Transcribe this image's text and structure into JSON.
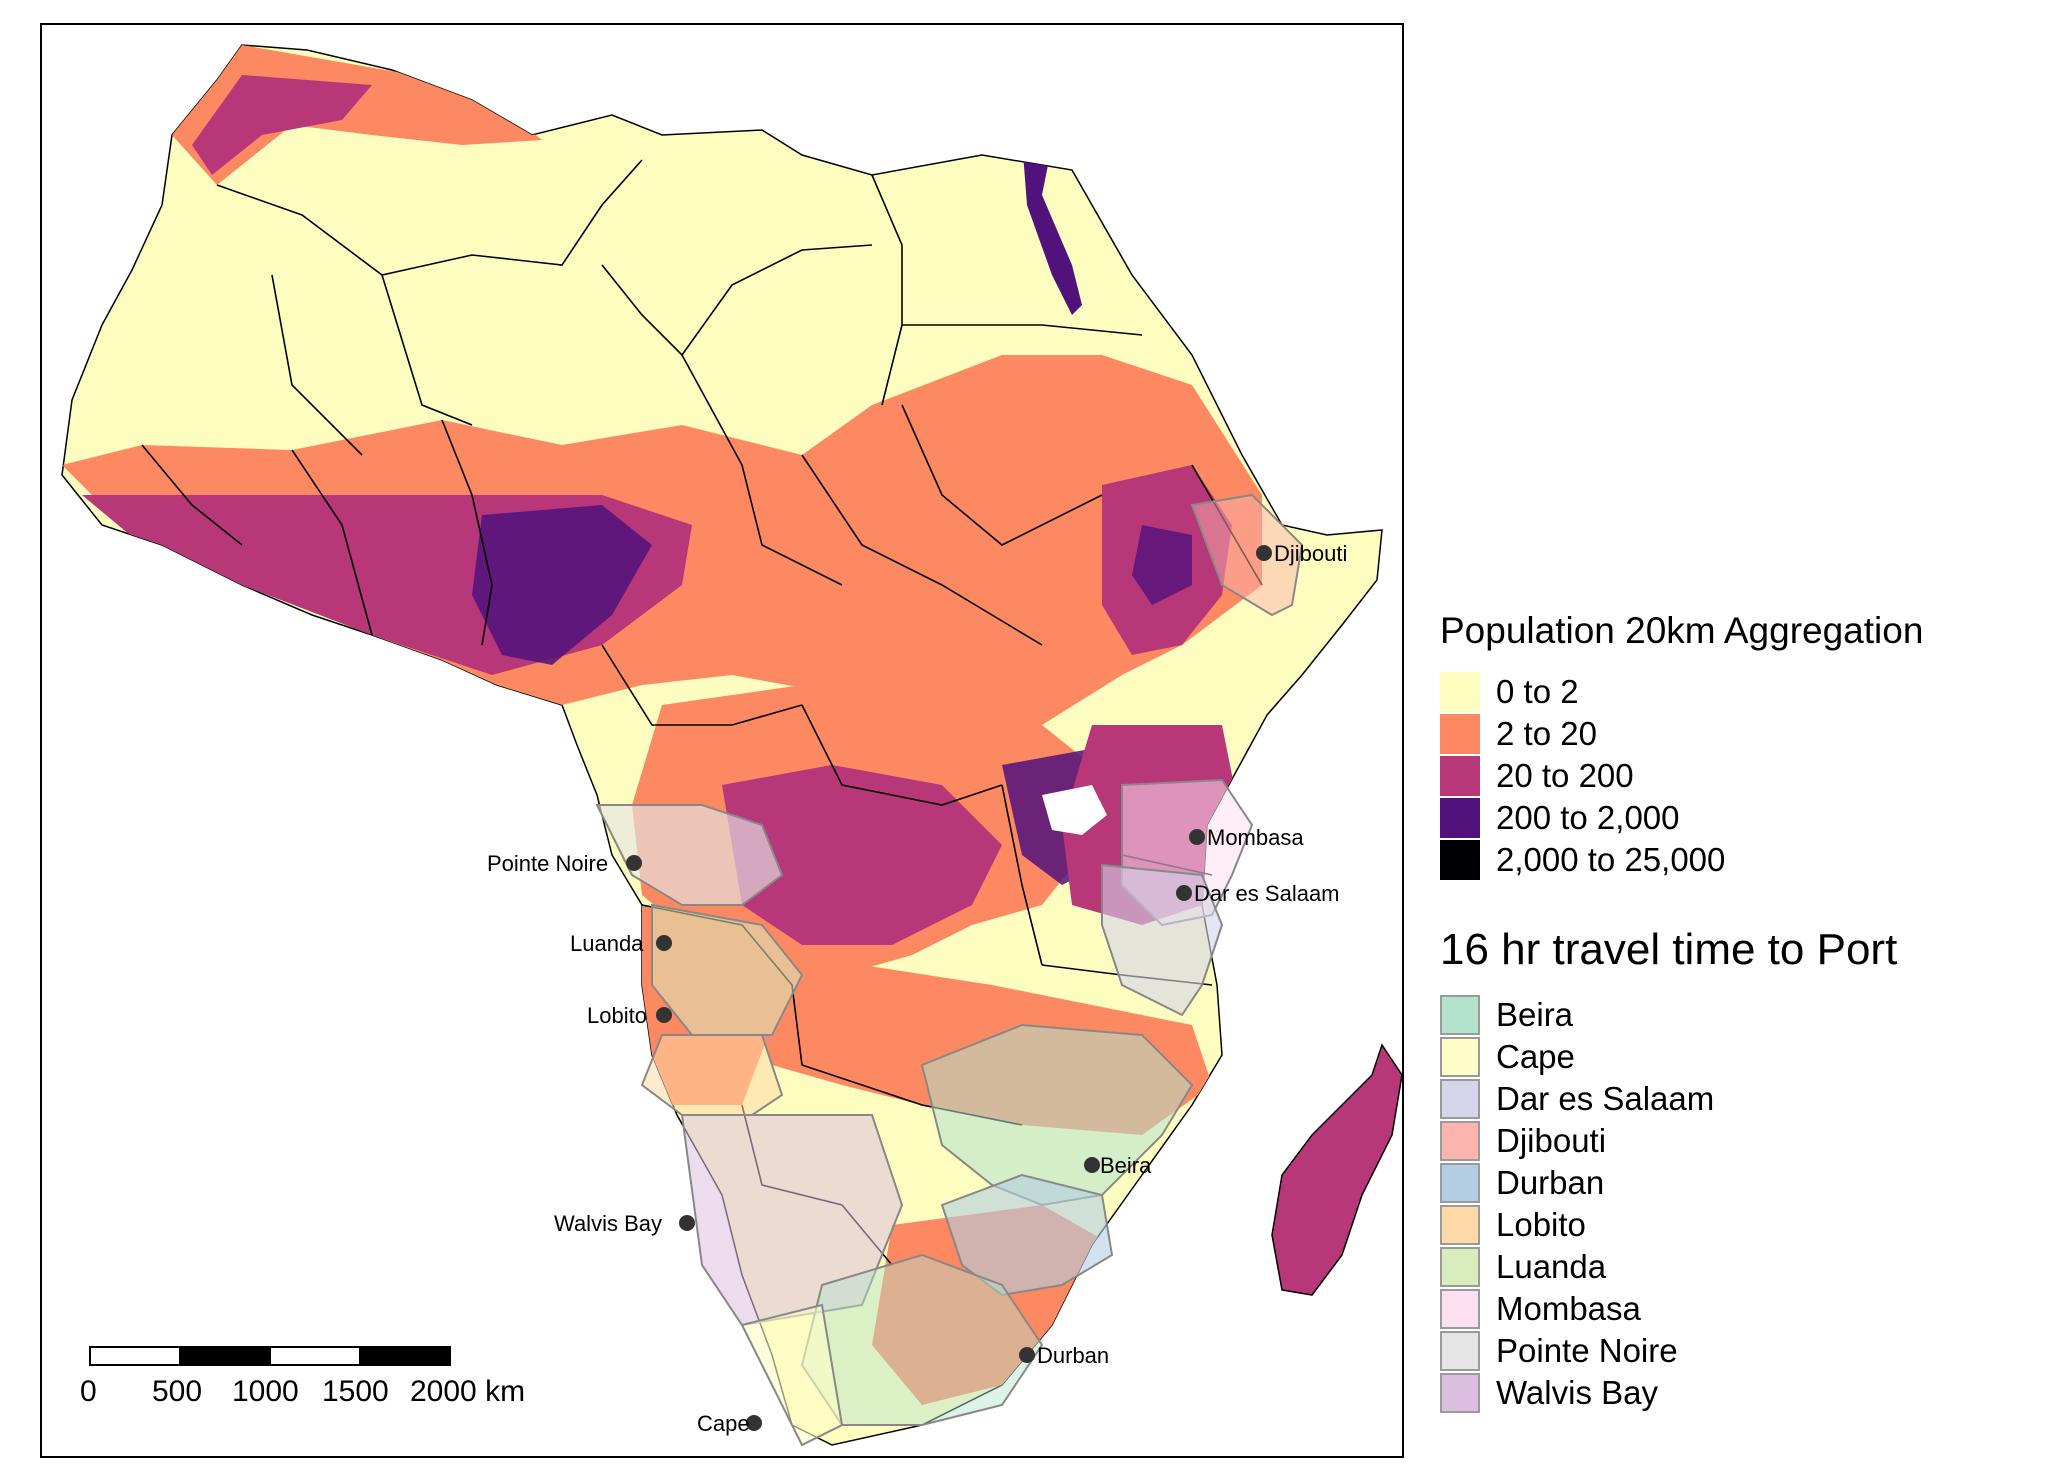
{
  "map": {
    "ports": [
      {
        "name": "Djibouti"
      },
      {
        "name": "Mombasa"
      },
      {
        "name": "Dar es Salaam"
      },
      {
        "name": "Pointe Noire"
      },
      {
        "name": "Luanda"
      },
      {
        "name": "Lobito"
      },
      {
        "name": "Beira"
      },
      {
        "name": "Walvis Bay"
      },
      {
        "name": "Durban"
      },
      {
        "name": "Cape"
      }
    ],
    "scale_bar": {
      "ticks": [
        "0",
        "500",
        "1000",
        "1500",
        "2000 km"
      ]
    }
  },
  "legend_population": {
    "title": "Population 20km Aggregation",
    "items": [
      {
        "label": "0 to 2",
        "color": "#fcfdbf"
      },
      {
        "label": "2 to 20",
        "color": "#fc8961"
      },
      {
        "label": "20 to 200",
        "color": "#b73779"
      },
      {
        "label": "200 to 2,000",
        "color": "#51127c"
      },
      {
        "label": "2,000 to 25,000",
        "color": "#000004"
      }
    ]
  },
  "legend_ports": {
    "title": "16 hr travel time to Port",
    "items": [
      {
        "label": "Beira",
        "color": "#b3e2cd"
      },
      {
        "label": "Cape",
        "color": "#fdfdc7"
      },
      {
        "label": "Dar es Salaam",
        "color": "#d6d4ea"
      },
      {
        "label": "Djibouti",
        "color": "#fbb4ae"
      },
      {
        "label": "Durban",
        "color": "#b3cde3"
      },
      {
        "label": "Lobito",
        "color": "#fed9a6"
      },
      {
        "label": "Luanda",
        "color": "#d9ecbd"
      },
      {
        "label": "Mombasa",
        "color": "#fde0f0"
      },
      {
        "label": "Pointe Noire",
        "color": "#e5e5e5"
      },
      {
        "label": "Walvis Bay",
        "color": "#dcbfe0"
      }
    ]
  }
}
